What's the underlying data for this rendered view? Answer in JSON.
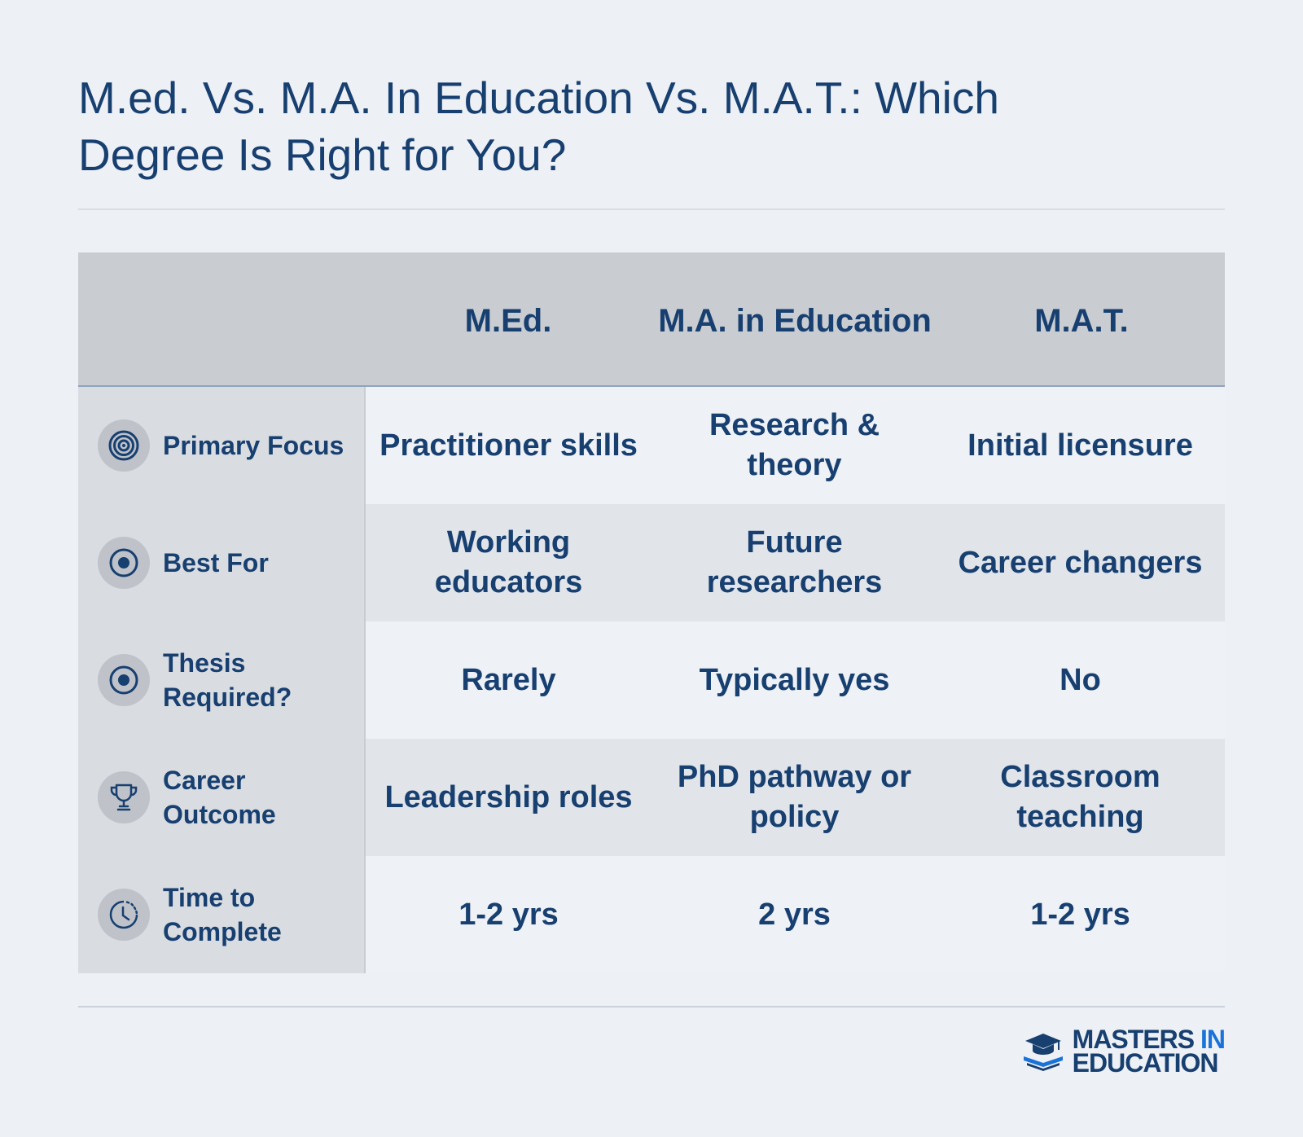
{
  "title": "M.ed. Vs. M.A. In Education Vs. M.A.T.: Which Degree Is Right for You?",
  "columns": [
    "M.Ed.",
    "M.A. in Education",
    "M.A.T."
  ],
  "rows": [
    {
      "label": "Primary Focus",
      "icon": "target-icon",
      "values": [
        "Practitioner skills",
        "Research & theory",
        "Initial licensure"
      ]
    },
    {
      "label": "Best For",
      "icon": "radio-dot-icon",
      "values": [
        "Working educators",
        "Future researchers",
        "Career changers"
      ]
    },
    {
      "label": "Thesis Required?",
      "icon": "radio-dot-icon",
      "values": [
        "Rarely",
        "Typically yes",
        "No"
      ]
    },
    {
      "label": "Career Outcome",
      "icon": "trophy-icon",
      "values": [
        "Leadership roles",
        "PhD pathway or policy",
        "Classroom teaching"
      ]
    },
    {
      "label": "Time to Complete",
      "icon": "clock-icon",
      "values": [
        "1-2 yrs",
        "2 yrs",
        "1-2 yrs"
      ]
    }
  ],
  "logo": {
    "line1_a": "MASTERS",
    "line1_b": "IN",
    "line2": "EDUCATION"
  },
  "colors": {
    "text": "#173f70",
    "accent": "#1a73d8",
    "header_bg": "#c9ccd1",
    "label_bg": "#d9dce1"
  }
}
